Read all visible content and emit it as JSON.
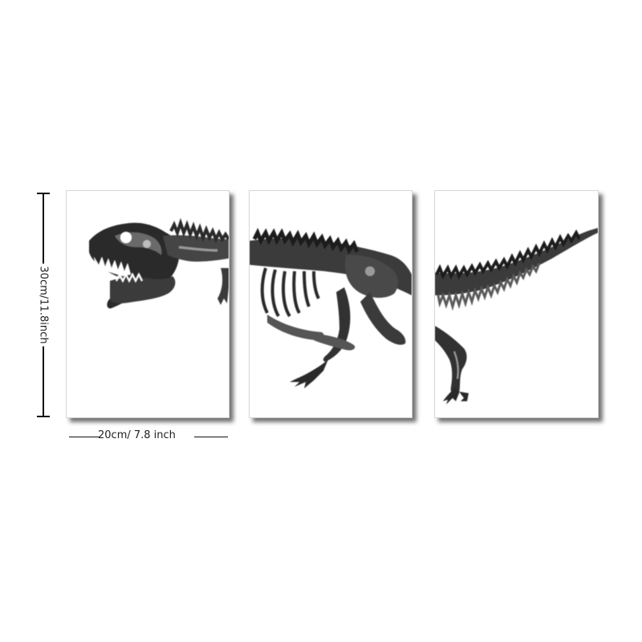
{
  "product": {
    "title": "",
    "panels": [
      {
        "id": "left",
        "depicts": "t-rex-skull-and-neck"
      },
      {
        "id": "middle",
        "depicts": "t-rex-torso-and-legs"
      },
      {
        "id": "right",
        "depicts": "t-rex-tail-and-hind-foot"
      }
    ]
  },
  "dimensions": {
    "height_label": "30cm/11.8inch",
    "width_label": "20cm/ 7.8 inch"
  },
  "colors": {
    "background": "#ffffff",
    "ink_dark": "#1c1c1c",
    "ink_mid": "#555555",
    "ink_light": "#8a8a8a",
    "dimension_line": "#111111"
  },
  "icons": {
    "artwork": "t-rex-skeleton-watercolor"
  }
}
